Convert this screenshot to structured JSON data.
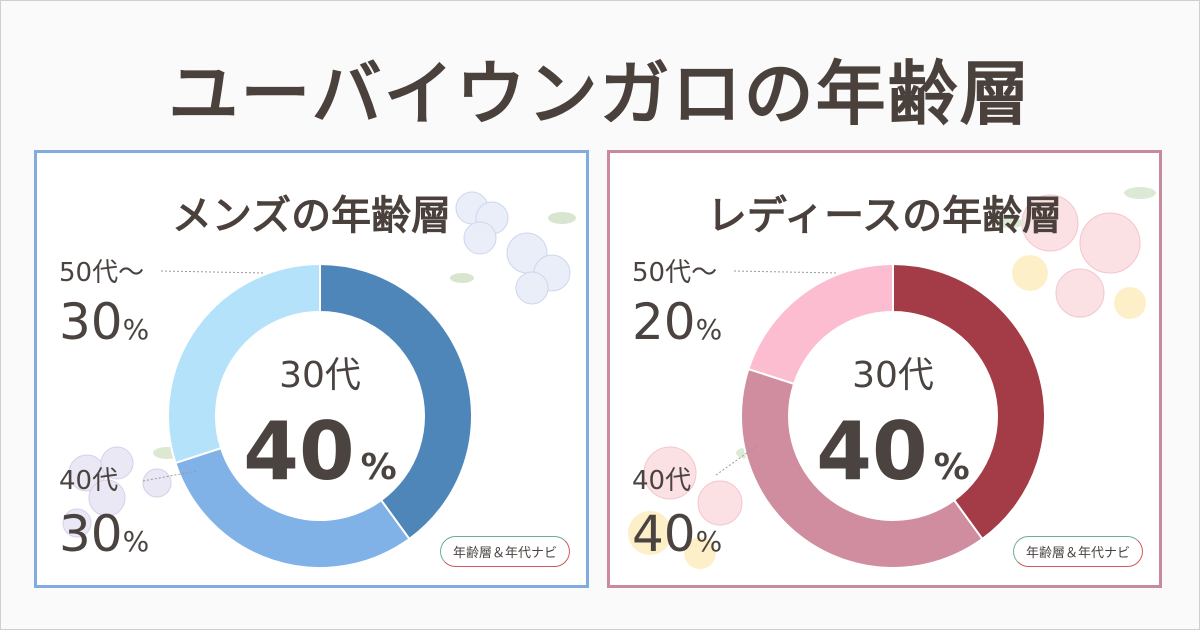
{
  "title": "ユーバイウンガロの年齢層",
  "badge_text": "年齢層＆年代ナビ",
  "chart_data": [
    {
      "type": "pie",
      "title": "メンズの年齢層",
      "categories": [
        "30代",
        "40代",
        "50代～"
      ],
      "values": [
        40,
        30,
        30
      ],
      "unit": "%",
      "colors": [
        "#4f86b9",
        "#80b1e7",
        "#b4e2fb"
      ],
      "highlight_category": "30代",
      "highlight_value": "40"
    },
    {
      "type": "pie",
      "title": "レディースの年齢層",
      "categories": [
        "30代",
        "40代",
        "50代～"
      ],
      "values": [
        40,
        40,
        20
      ],
      "unit": "%",
      "colors": [
        "#a33c46",
        "#cf8d9f",
        "#fdbdd0"
      ],
      "highlight_category": "30代",
      "highlight_value": "40"
    }
  ]
}
